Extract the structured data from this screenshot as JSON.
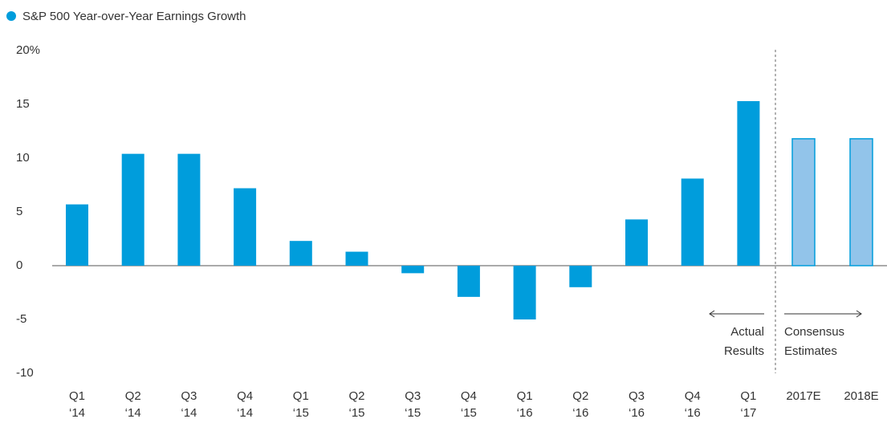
{
  "chart_data": {
    "type": "bar",
    "categories": [
      [
        "Q1",
        "‘14"
      ],
      [
        "Q2",
        "‘14"
      ],
      [
        "Q3",
        "‘14"
      ],
      [
        "Q4",
        "‘14"
      ],
      [
        "Q1",
        "‘15"
      ],
      [
        "Q2",
        "‘15"
      ],
      [
        "Q3",
        "‘15"
      ],
      [
        "Q4",
        "‘15"
      ],
      [
        "Q1",
        "‘16"
      ],
      [
        "Q2",
        "‘16"
      ],
      [
        "Q3",
        "‘16"
      ],
      [
        "Q4",
        "‘16"
      ],
      [
        "Q1",
        "‘17"
      ],
      [
        "2017E"
      ],
      [
        "2018E"
      ]
    ],
    "series": [
      {
        "name": "S&P 500 Year-over-Year Earnings Growth",
        "color": "#009ddc",
        "values": [
          5.7,
          10.4,
          10.4,
          7.2,
          2.3,
          1.3,
          -0.7,
          -2.9,
          -5.0,
          -2.0,
          4.3,
          8.1,
          15.3,
          11.8,
          11.8
        ],
        "colors": [
          "#009ddc",
          "#009ddc",
          "#009ddc",
          "#009ddc",
          "#009ddc",
          "#009ddc",
          "#009ddc",
          "#009ddc",
          "#009ddc",
          "#009ddc",
          "#009ddc",
          "#009ddc",
          "#009ddc",
          "#92c4ea",
          "#92c4ea"
        ]
      }
    ],
    "ylim": [
      -10,
      20
    ],
    "yticks": [
      -10,
      -5,
      0,
      5,
      10,
      15,
      {
        "value": 20,
        "label": "20%"
      }
    ],
    "annotations": [
      {
        "lines": [
          "Actual",
          "Results"
        ]
      },
      {
        "lines": [
          "Consensus",
          "Estimates"
        ]
      }
    ],
    "legend": "top-left"
  }
}
